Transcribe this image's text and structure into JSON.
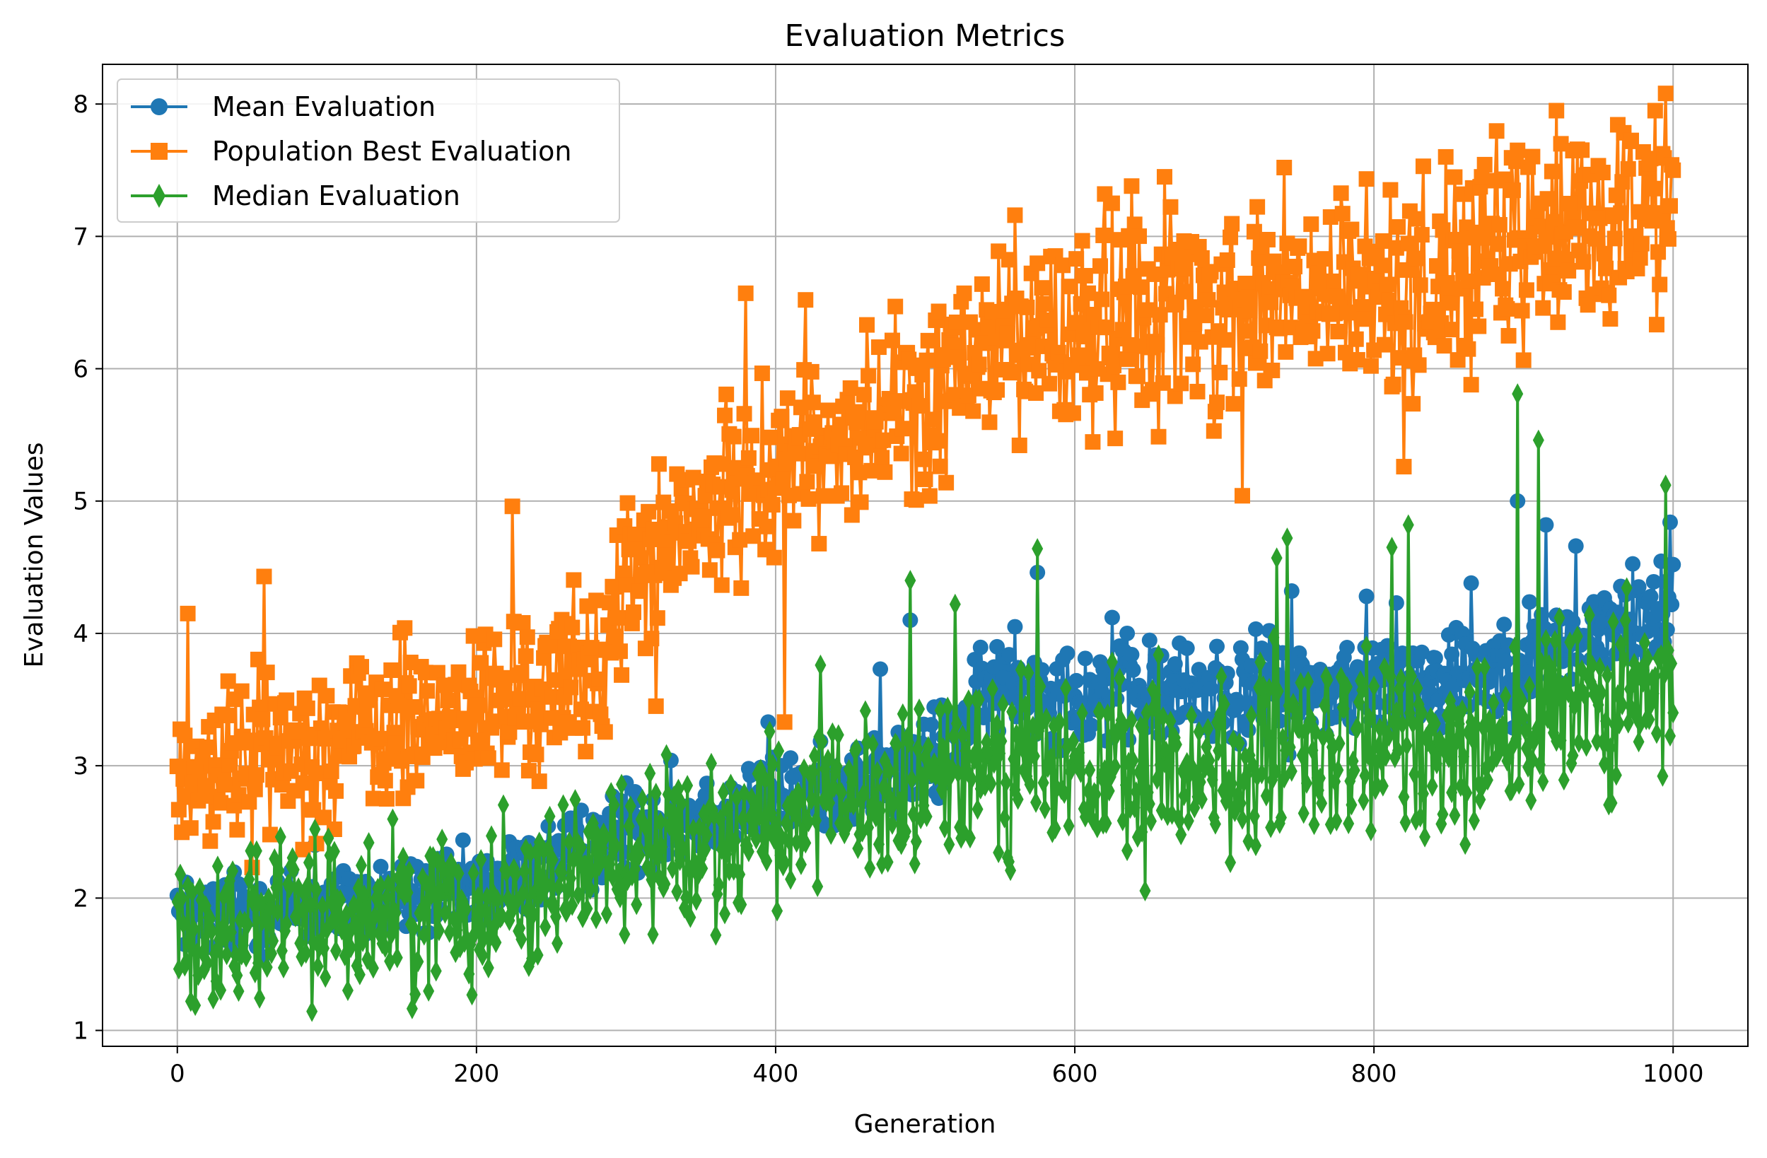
{
  "chart_data": {
    "type": "line",
    "title": "Evaluation Metrics",
    "xlabel": "Generation",
    "ylabel": "Evaluation Values",
    "xlim": [
      -50,
      1050
    ],
    "ylim": [
      0.88,
      8.3
    ],
    "x_ticks": [
      0,
      200,
      400,
      600,
      800,
      1000
    ],
    "y_ticks": [
      1,
      2,
      3,
      4,
      5,
      6,
      7,
      8
    ],
    "x_tick_labels": [
      "0",
      "200",
      "400",
      "600",
      "800",
      "1000"
    ],
    "y_tick_labels": [
      "1",
      "2",
      "3",
      "4",
      "5",
      "6",
      "7",
      "8"
    ],
    "grid": true,
    "legend_position": "top-left",
    "generations": [
      0,
      1000
    ],
    "series": [
      {
        "name": "Mean Evaluation",
        "color": "#1f77b4",
        "marker": "circle",
        "trend": [
          [
            0,
            1.85
          ],
          [
            100,
            1.95
          ],
          [
            200,
            2.05
          ],
          [
            300,
            2.5
          ],
          [
            400,
            2.75
          ],
          [
            500,
            3.0
          ],
          [
            550,
            3.6
          ],
          [
            600,
            3.55
          ],
          [
            700,
            3.55
          ],
          [
            800,
            3.6
          ],
          [
            900,
            3.8
          ],
          [
            1000,
            4.2
          ]
        ],
        "noise": 0.22,
        "highlights": [
          [
            0,
            2.02
          ],
          [
            5,
            1.65
          ],
          [
            32,
            2.1
          ],
          [
            92,
            2.4
          ],
          [
            225,
            2.37
          ],
          [
            300,
            2.87
          ],
          [
            330,
            3.04
          ],
          [
            395,
            3.33
          ],
          [
            470,
            3.73
          ],
          [
            490,
            4.1
          ],
          [
            560,
            4.05
          ],
          [
            575,
            4.46
          ],
          [
            625,
            4.12
          ],
          [
            730,
            4.02
          ],
          [
            745,
            4.32
          ],
          [
            795,
            4.28
          ],
          [
            815,
            4.23
          ],
          [
            865,
            4.38
          ],
          [
            896,
            5.0
          ],
          [
            915,
            4.82
          ],
          [
            935,
            4.66
          ],
          [
            998,
            4.84
          ],
          [
            1000,
            4.52
          ]
        ]
      },
      {
        "name": "Population Best Evaluation",
        "color": "#ff7f0e",
        "marker": "square",
        "trend": [
          [
            0,
            2.95
          ],
          [
            100,
            3.2
          ],
          [
            200,
            3.4
          ],
          [
            280,
            3.7
          ],
          [
            300,
            4.4
          ],
          [
            350,
            4.85
          ],
          [
            400,
            5.3
          ],
          [
            450,
            5.5
          ],
          [
            500,
            5.7
          ],
          [
            550,
            6.2
          ],
          [
            600,
            6.25
          ],
          [
            650,
            6.5
          ],
          [
            700,
            6.45
          ],
          [
            800,
            6.55
          ],
          [
            900,
            6.9
          ],
          [
            1000,
            7.3
          ]
        ],
        "noise": 0.45,
        "highlights": [
          [
            4,
            2.9
          ],
          [
            7,
            4.15
          ],
          [
            58,
            4.43
          ],
          [
            105,
            2.52
          ],
          [
            224,
            4.96
          ],
          [
            320,
            3.45
          ],
          [
            380,
            6.57
          ],
          [
            406,
            3.33
          ],
          [
            420,
            6.52
          ],
          [
            480,
            6.47
          ],
          [
            560,
            7.16
          ],
          [
            625,
            7.25
          ],
          [
            638,
            7.38
          ],
          [
            660,
            7.45
          ],
          [
            712,
            5.04
          ],
          [
            740,
            7.52
          ],
          [
            820,
            5.26
          ],
          [
            896,
            7.65
          ],
          [
            922,
            7.95
          ],
          [
            988,
            7.95
          ],
          [
            1000,
            7.5
          ]
        ]
      },
      {
        "name": "Median Evaluation",
        "color": "#2ca02c",
        "marker": "diamond",
        "trend": [
          [
            0,
            1.75
          ],
          [
            100,
            1.85
          ],
          [
            200,
            1.95
          ],
          [
            300,
            2.35
          ],
          [
            400,
            2.6
          ],
          [
            500,
            2.8
          ],
          [
            550,
            3.15
          ],
          [
            600,
            2.9
          ],
          [
            700,
            3.0
          ],
          [
            800,
            3.1
          ],
          [
            900,
            3.3
          ],
          [
            1000,
            3.55
          ]
        ],
        "noise": 0.42,
        "highlights": [
          [
            2,
            2.18
          ],
          [
            9,
            1.22
          ],
          [
            92,
            2.52
          ],
          [
            360,
            1.72
          ],
          [
            430,
            3.76
          ],
          [
            490,
            4.4
          ],
          [
            520,
            4.22
          ],
          [
            575,
            4.64
          ],
          [
            735,
            4.57
          ],
          [
            742,
            4.72
          ],
          [
            812,
            4.65
          ],
          [
            823,
            4.82
          ],
          [
            896,
            5.81
          ],
          [
            910,
            5.46
          ],
          [
            995,
            5.12
          ],
          [
            1000,
            3.4
          ]
        ]
      }
    ]
  }
}
